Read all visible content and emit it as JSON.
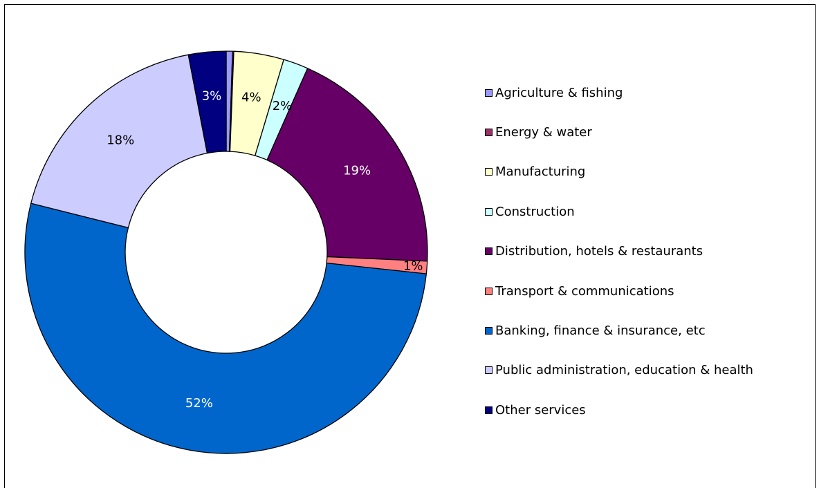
{
  "chart_data": {
    "type": "pie",
    "donut": true,
    "title": "",
    "legend_position": "right",
    "start_angle_deg": 0,
    "direction": "clockwise",
    "series": [
      {
        "name": "",
        "categories": [
          "Agriculture & fishing",
          "Energy & water",
          "Manufacturing",
          "Construction",
          "Distribution, hotels & restaurants",
          "Transport & communications",
          "Banking, finance & insurance, etc",
          "Public administration, education & health",
          "Other services"
        ],
        "values": [
          0.5,
          0.1,
          4,
          2,
          19,
          1,
          52,
          18,
          3
        ],
        "labels": [
          "",
          "",
          "4%",
          "2%",
          "19%",
          "1%",
          "52%",
          "18%",
          "3%"
        ],
        "colors": [
          "#9999ff",
          "#993366",
          "#ffffcc",
          "#ccffff",
          "#660066",
          "#ff8080",
          "#0066cc",
          "#ccccff",
          "#000080"
        ],
        "label_colors": [
          "#000000",
          "#000000",
          "#000000",
          "#000000",
          "#ffffff",
          "#000000",
          "#ffffff",
          "#000000",
          "#ffffff"
        ]
      }
    ]
  }
}
